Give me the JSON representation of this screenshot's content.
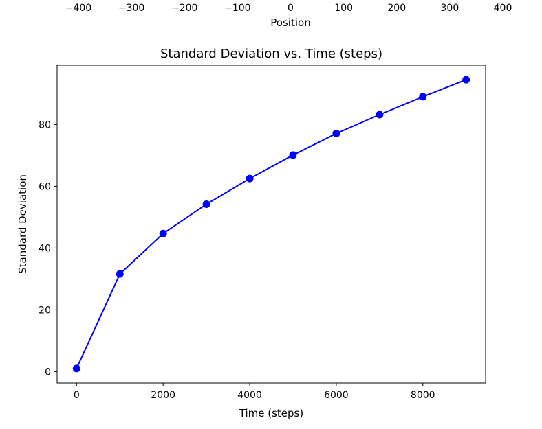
{
  "top_axis": {
    "tick_labels": [
      "−400",
      "−300",
      "−200",
      "−100",
      "0",
      "100",
      "200",
      "300",
      "400"
    ],
    "tick_values": [
      -400,
      -300,
      -200,
      -100,
      0,
      100,
      200,
      300,
      400
    ],
    "xlabel": "Position"
  },
  "chart_data": {
    "type": "line",
    "title": "Standard Deviation vs. Time (steps)",
    "xlabel": "Time (steps)",
    "ylabel": "Standard Deviation",
    "x": [
      0,
      1000,
      2000,
      3000,
      4000,
      5000,
      6000,
      7000,
      8000,
      9000
    ],
    "series": [
      {
        "values": [
          1,
          31.6,
          44.7,
          54.2,
          62.5,
          70.1,
          77.1,
          83.2,
          89.0,
          94.5
        ],
        "color": "#0000ff",
        "marker": "circle"
      }
    ],
    "xlim": [
      -450,
      9450
    ],
    "ylim": [
      -3.7,
      99.2
    ],
    "xticks": [
      0,
      2000,
      4000,
      6000,
      8000
    ],
    "yticks": [
      0,
      20,
      40,
      60,
      80
    ],
    "grid": false,
    "legend": false
  }
}
